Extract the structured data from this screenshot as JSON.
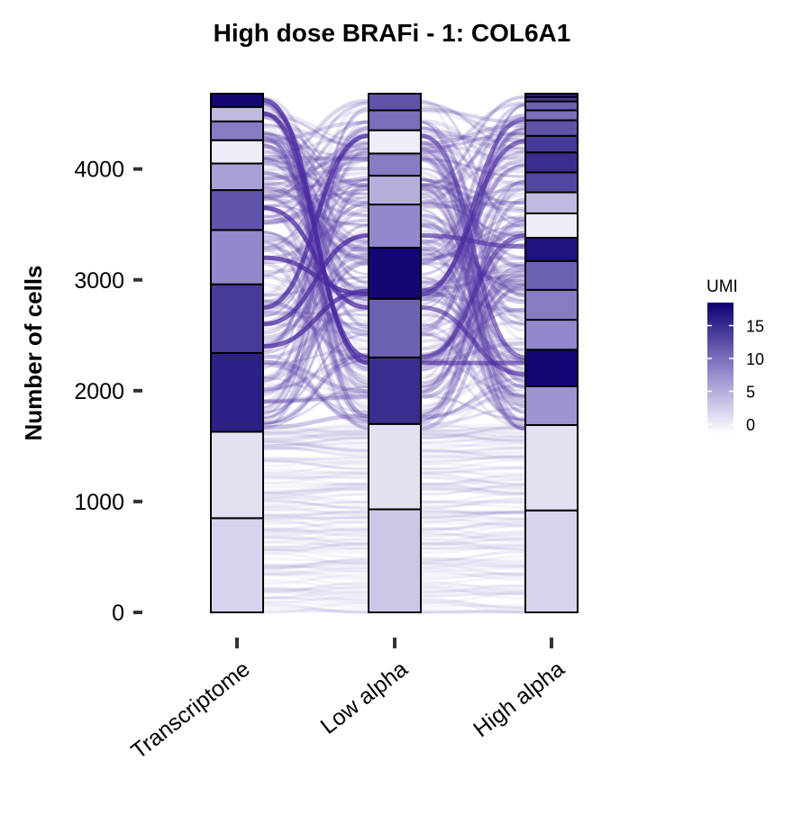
{
  "chart_data": {
    "type": "alluvial",
    "title": "High dose BRAFi - 1: COL6A1",
    "xlabel": "",
    "ylabel": "Number of cells",
    "ylim": [
      0,
      4680
    ],
    "yticks": [
      0,
      1000,
      2000,
      3000,
      4000
    ],
    "categories": [
      "Transcriptome",
      "Low alpha",
      "High alpha"
    ],
    "legend": {
      "title": "UMI",
      "position": "right",
      "ticks": [
        0,
        5,
        10,
        15
      ],
      "range": [
        -1.5,
        18.5
      ],
      "color_low": "#ffffff",
      "color_mid": "#8c82c8",
      "color_high": "#0c0070"
    },
    "flow_color": "#5a3fa8",
    "stacks": [
      {
        "name": "Transcriptome",
        "segments": [
          {
            "umi": 2,
            "count": 850
          },
          {
            "umi": 1,
            "count": 780
          },
          {
            "umi": 16,
            "count": 710
          },
          {
            "umi": 14,
            "count": 620
          },
          {
            "umi": 8,
            "count": 490
          },
          {
            "umi": 12,
            "count": 360
          },
          {
            "umi": 6,
            "count": 240
          },
          {
            "umi": 0,
            "count": 210
          },
          {
            "umi": 9,
            "count": 170
          },
          {
            "umi": 4,
            "count": 130
          },
          {
            "umi": 18,
            "count": 120
          }
        ]
      },
      {
        "name": "Low alpha",
        "segments": [
          {
            "umi": 3,
            "count": 930
          },
          {
            "umi": 1,
            "count": 770
          },
          {
            "umi": 15,
            "count": 600
          },
          {
            "umi": 11,
            "count": 530
          },
          {
            "umi": 18,
            "count": 460
          },
          {
            "umi": 8,
            "count": 390
          },
          {
            "umi": 5,
            "count": 260
          },
          {
            "umi": 9,
            "count": 200
          },
          {
            "umi": 0,
            "count": 210
          },
          {
            "umi": 10,
            "count": 180
          },
          {
            "umi": 12,
            "count": 150
          }
        ]
      },
      {
        "name": "High alpha",
        "segments": [
          {
            "umi": 2,
            "count": 920
          },
          {
            "umi": 1,
            "count": 770
          },
          {
            "umi": 7,
            "count": 350
          },
          {
            "umi": 18,
            "count": 330
          },
          {
            "umi": 8,
            "count": 270
          },
          {
            "umi": 9,
            "count": 270
          },
          {
            "umi": 11,
            "count": 260
          },
          {
            "umi": 17,
            "count": 210
          },
          {
            "umi": 0,
            "count": 220
          },
          {
            "umi": 4,
            "count": 190
          },
          {
            "umi": 13,
            "count": 180
          },
          {
            "umi": 15,
            "count": 180
          },
          {
            "umi": 14,
            "count": 150
          },
          {
            "umi": 12,
            "count": 140
          },
          {
            "umi": 10,
            "count": 90
          },
          {
            "umi": 11,
            "count": 80
          },
          {
            "umi": 14,
            "count": 40
          },
          {
            "umi": 16,
            "count": 30
          }
        ]
      }
    ]
  }
}
